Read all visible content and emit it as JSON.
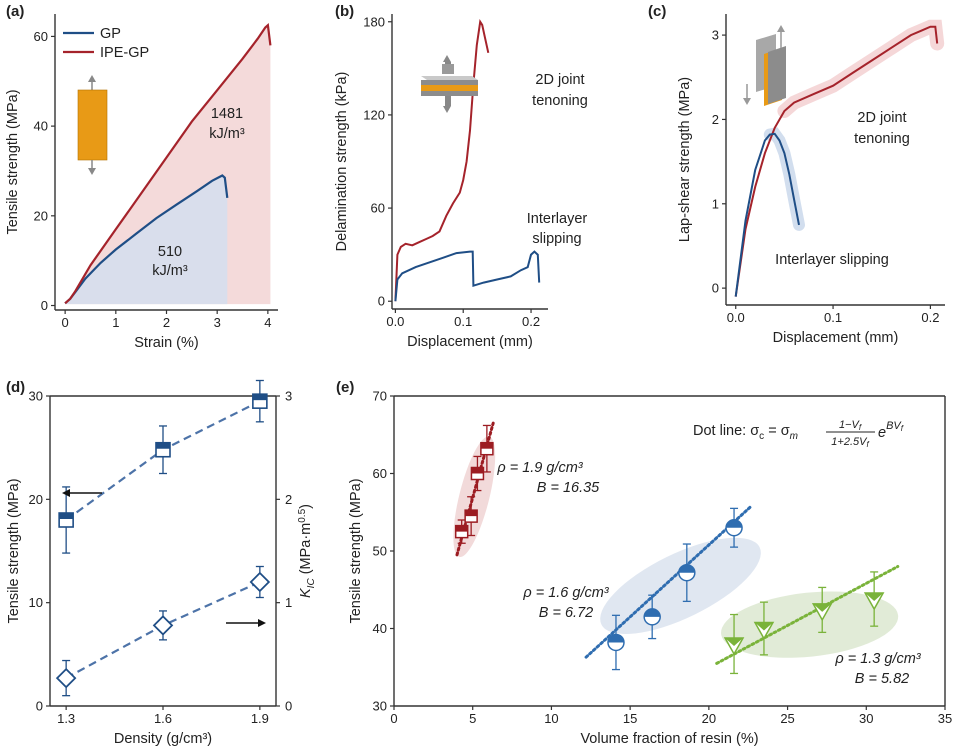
{
  "colors": {
    "gp": "#1f4e86",
    "ipe": "#a5232b",
    "ipe_fill": "#f4dada",
    "gp_fill": "#d9deec",
    "blue": "#2f6db0",
    "green": "#7ab33a",
    "darkred": "#9c1c22"
  },
  "panel_labels": {
    "a": "(a)",
    "b": "(b)",
    "c": "(c)",
    "d": "(d)",
    "e": "(e)"
  },
  "chart_data": [
    {
      "id": "a",
      "type": "line",
      "xlabel": "Strain (%)",
      "ylabel": "Tensile strength (MPa)",
      "xlim": [
        -0.2,
        4.2
      ],
      "ylim": [
        -1,
        65
      ],
      "xticks": [
        "0",
        "1",
        "2",
        "3",
        "4"
      ],
      "yticks": [
        "0",
        "20",
        "40",
        "60"
      ],
      "legend": [
        "GP",
        "IPE-GP"
      ],
      "series": [
        {
          "name": "GP",
          "color_key": "gp",
          "x": [
            0,
            0.1,
            0.2,
            0.4,
            0.7,
            1.0,
            1.4,
            1.8,
            2.2,
            2.6,
            2.9,
            3.1,
            3.15,
            3.2
          ],
          "y": [
            0.5,
            1.5,
            3,
            6,
            9.5,
            12.5,
            16,
            19.5,
            22.5,
            25.5,
            27.8,
            29,
            28.5,
            24
          ]
        },
        {
          "name": "IPE-GP",
          "color_key": "ipe",
          "x": [
            0,
            0.1,
            0.2,
            0.5,
            1.0,
            1.5,
            2.0,
            2.5,
            3.0,
            3.5,
            3.8,
            3.95,
            4.0,
            4.05
          ],
          "y": [
            0.5,
            1.5,
            3.2,
            9,
            17,
            25,
            33,
            41,
            48,
            55,
            59.5,
            62,
            62.5,
            58
          ]
        }
      ],
      "annotations": [
        {
          "text": "1481",
          "series": "IPE-GP"
        },
        {
          "text": "kJ/m³",
          "series": "IPE-GP"
        },
        {
          "text": "510",
          "series": "GP"
        },
        {
          "text": "kJ/m³",
          "series": "GP"
        }
      ]
    },
    {
      "id": "b",
      "type": "line",
      "xlabel": "Displacement (mm)",
      "ylabel": "Delamination strength (kPa)",
      "xlim": [
        -0.005,
        0.225
      ],
      "ylim": [
        -5,
        185
      ],
      "xticks": [
        "0.0",
        "0.1",
        "0.2"
      ],
      "yticks": [
        "0",
        "60",
        "120",
        "180"
      ],
      "series": [
        {
          "name": "2D joint tenoning",
          "label_lines": [
            "2D joint",
            "tenoning"
          ],
          "color_key": "ipe",
          "x": [
            0,
            0.003,
            0.008,
            0.015,
            0.025,
            0.035,
            0.045,
            0.055,
            0.065,
            0.075,
            0.085,
            0.095,
            0.1,
            0.105,
            0.11,
            0.115,
            0.12,
            0.125,
            0.128,
            0.132,
            0.137
          ],
          "y": [
            0,
            30,
            35,
            37,
            36,
            38,
            40,
            42,
            45,
            55,
            63,
            70,
            78,
            90,
            110,
            140,
            165,
            180,
            178,
            170,
            160
          ]
        },
        {
          "name": "Interlayer slipping",
          "label_lines": [
            "Interlayer",
            "slipping"
          ],
          "color_key": "gp",
          "x": [
            0,
            0.003,
            0.01,
            0.03,
            0.05,
            0.07,
            0.09,
            0.11,
            0.114,
            0.115,
            0.13,
            0.15,
            0.17,
            0.185,
            0.195,
            0.2,
            0.205,
            0.21,
            0.212
          ],
          "y": [
            0,
            14,
            18,
            22,
            25,
            28,
            31,
            32,
            32,
            10,
            12,
            14,
            16,
            20,
            22,
            30,
            32,
            30,
            12
          ]
        }
      ]
    },
    {
      "id": "c",
      "type": "line",
      "xlabel": "Displacement (mm)",
      "ylabel": "Lap-shear strength (MPa)",
      "xlim": [
        -0.01,
        0.215
      ],
      "ylim": [
        -0.2,
        3.25
      ],
      "xticks": [
        "0.0",
        "0.1",
        "0.2"
      ],
      "yticks": [
        "0",
        "1",
        "2",
        "3"
      ],
      "series": [
        {
          "name": "2D joint tenoning",
          "label_lines": [
            "2D joint",
            "tenoning"
          ],
          "color_key": "ipe",
          "x": [
            0,
            0.01,
            0.02,
            0.03,
            0.04,
            0.05,
            0.06,
            0.08,
            0.1,
            0.12,
            0.14,
            0.16,
            0.18,
            0.19,
            0.2,
            0.205,
            0.207
          ],
          "y": [
            -0.1,
            0.7,
            1.2,
            1.6,
            1.9,
            2.1,
            2.2,
            2.3,
            2.4,
            2.55,
            2.7,
            2.85,
            3.0,
            3.05,
            3.1,
            3.1,
            2.9
          ]
        },
        {
          "name": "Interlayer slipping",
          "label_lines": [
            "Interlayer slipping"
          ],
          "color_key": "gp",
          "x": [
            0,
            0.01,
            0.02,
            0.03,
            0.035,
            0.04,
            0.045,
            0.05,
            0.055,
            0.06,
            0.065
          ],
          "y": [
            -0.1,
            0.8,
            1.4,
            1.75,
            1.82,
            1.83,
            1.75,
            1.6,
            1.35,
            1.05,
            0.75
          ]
        }
      ]
    },
    {
      "id": "d",
      "type": "scatter",
      "xlabel": "Density (g/cm³)",
      "ylabel": "Tensile strength (MPa)",
      "ylabel2": "K_IC (MPa·m^0.5)",
      "ylabel2_parts": {
        "sym": "K",
        "sub": "IC",
        "unit_open": " (MPa·m",
        "sup": "0.5",
        "unit_close": ")"
      },
      "xlim": [
        1.25,
        1.95
      ],
      "ylim": [
        0,
        30
      ],
      "y2lim": [
        0,
        3
      ],
      "xticks": [
        "1.3",
        "1.6",
        "1.9"
      ],
      "yticks": [
        "0",
        "10",
        "20",
        "30"
      ],
      "y2ticks": [
        "0",
        "1",
        "2",
        "3"
      ],
      "series": [
        {
          "name": "Tensile strength",
          "marker": "square",
          "axis": "left",
          "x": [
            1.3,
            1.6,
            1.9
          ],
          "y": [
            18,
            24.8,
            29.5
          ],
          "err": [
            3.2,
            2.3,
            2.0
          ]
        },
        {
          "name": "K_IC",
          "marker": "diamond",
          "axis": "right",
          "x": [
            1.3,
            1.6,
            1.9
          ],
          "y": [
            0.27,
            0.78,
            1.2
          ],
          "err": [
            0.17,
            0.14,
            0.15
          ]
        }
      ]
    },
    {
      "id": "e",
      "type": "scatter",
      "xlabel": "Volume fraction of resin (%)",
      "ylabel": "Tensile strength (MPa)",
      "xlim": [
        0,
        35
      ],
      "ylim": [
        30,
        70
      ],
      "xticks": [
        "0",
        "5",
        "10",
        "15",
        "20",
        "25",
        "30",
        "35"
      ],
      "yticks": [
        "30",
        "40",
        "50",
        "60",
        "70"
      ],
      "formula": {
        "lead": "Dot line: σ",
        "sub_c": "c",
        "eq": " = σ",
        "sub_m": "m",
        "num": "1−V",
        "num_sub": "f",
        "den": "1+2.5V",
        "den_sub": "f",
        "exp_base": "e",
        "exp": "BV",
        "exp_sub": "f"
      },
      "series": [
        {
          "name": "ρ = 1.9 g/cm³",
          "B_label": "B = 16.35",
          "marker": "square",
          "color_key": "darkred",
          "x": [
            4.3,
            4.9,
            5.3,
            5.9
          ],
          "y": [
            52.5,
            54.5,
            60,
            63.2
          ],
          "err": [
            1.5,
            2.5,
            2.2,
            3.0
          ],
          "fit_x": [
            4.0,
            6.3
          ],
          "fit_y": [
            49.5,
            66.5
          ]
        },
        {
          "name": "ρ = 1.6 g/cm³",
          "B_label": "B = 6.72",
          "marker": "circle",
          "color_key": "blue",
          "x": [
            14.1,
            16.4,
            18.6,
            21.6
          ],
          "y": [
            38.2,
            41.5,
            47.2,
            53
          ],
          "err": [
            3.5,
            2.8,
            3.7,
            2.5
          ],
          "fit_x": [
            12.2,
            22.7
          ],
          "fit_y": [
            36.3,
            55.8
          ]
        },
        {
          "name": "ρ = 1.3 g/cm³",
          "B_label": "B = 5.82",
          "marker": "triangle",
          "color_key": "green",
          "x": [
            21.6,
            23.5,
            27.2,
            30.5
          ],
          "y": [
            38,
            40,
            42.4,
            43.8
          ],
          "err": [
            3.8,
            3.4,
            2.9,
            3.5
          ],
          "fit_x": [
            20.5,
            32.0
          ],
          "fit_y": [
            35.5,
            48.0
          ]
        }
      ]
    }
  ]
}
